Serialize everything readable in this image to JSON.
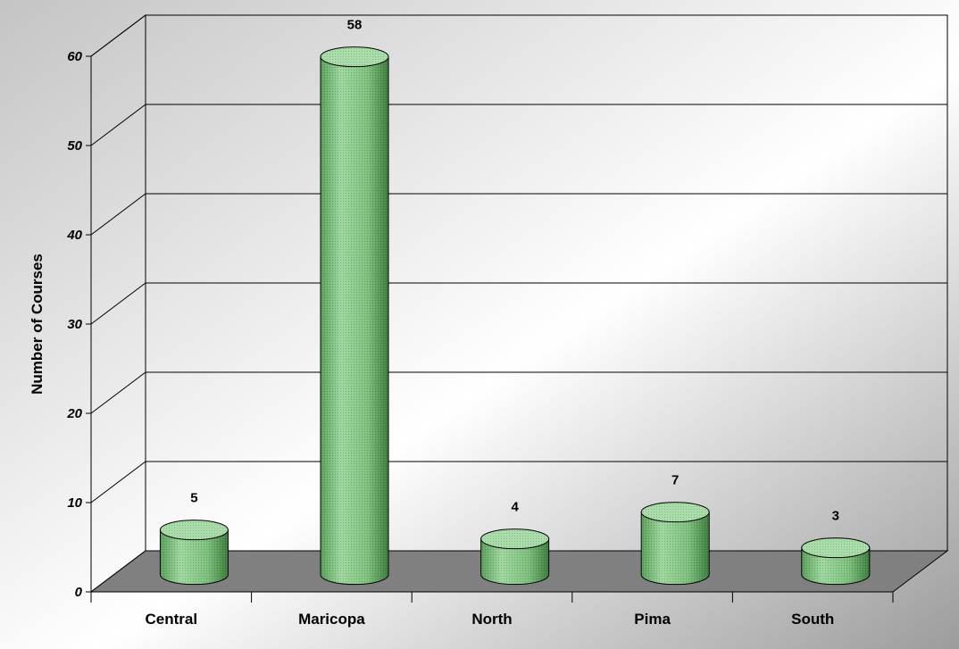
{
  "chart_data": {
    "type": "bar",
    "style": "3d-cylinder",
    "categories": [
      "Central",
      "Maricopa",
      "North",
      "Pima",
      "South"
    ],
    "values": [
      5,
      58,
      4,
      7,
      3
    ],
    "data_labels": [
      "5",
      "58",
      "4",
      "7",
      "3"
    ],
    "title": "",
    "xlabel": "",
    "ylabel": "Number of Courses",
    "ylim": [
      0,
      60
    ],
    "yticks": [
      "0",
      "10",
      "20",
      "30",
      "40",
      "50",
      "60"
    ],
    "grid": true,
    "legend": "none",
    "colors": {
      "bar_fill": "#8fd08f",
      "bar_dark": "#3f8f3f",
      "bar_top": "#a8dca8",
      "floor": "#808080",
      "wall_light": "#ffffff",
      "wall_dark": "#b8b8b8"
    }
  }
}
